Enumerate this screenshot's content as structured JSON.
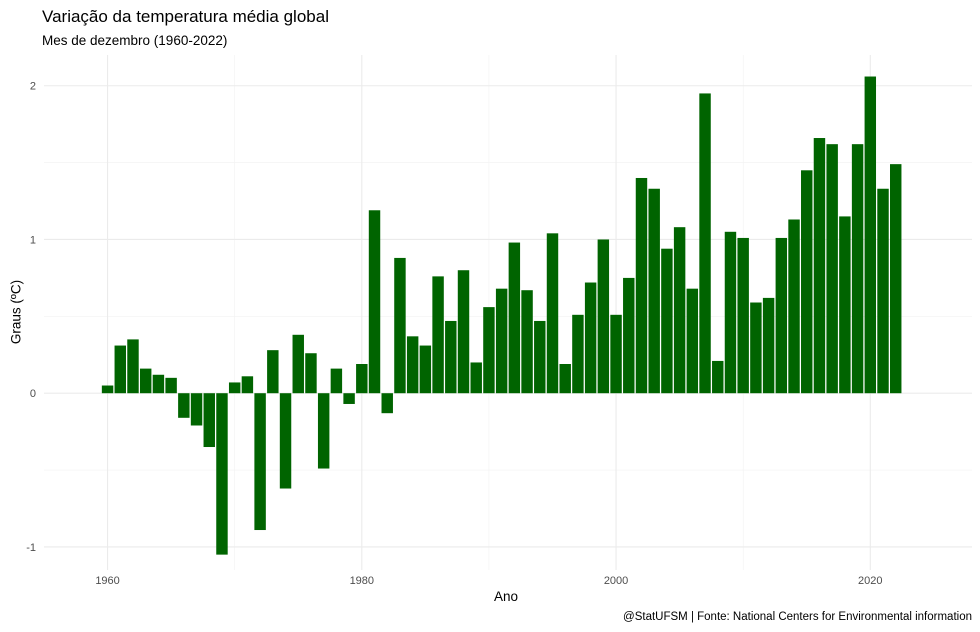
{
  "chart_data": {
    "type": "bar",
    "title": "Variação da temperatura média global",
    "subtitle": "Mes de dezembro (1960-2022)",
    "xlabel": "Ano",
    "ylabel": "Graus (ºC)",
    "caption": "@StatUFSM  |  Fonte: National Centers for Environmental information",
    "bar_color": "#006400",
    "grid": true,
    "xlim": [
      1955,
      2028
    ],
    "ylim": [
      -1.15,
      2.2
    ],
    "x_ticks": [
      1960,
      1980,
      2000,
      2020
    ],
    "x_tick_labels": [
      "1960",
      "1980",
      "2000",
      "2020"
    ],
    "y_ticks": [
      -1,
      0,
      1,
      2
    ],
    "y_tick_labels": [
      "-1",
      "0",
      "1",
      "2"
    ],
    "x": [
      1960,
      1961,
      1962,
      1963,
      1964,
      1965,
      1966,
      1967,
      1968,
      1969,
      1970,
      1971,
      1972,
      1973,
      1974,
      1975,
      1976,
      1977,
      1978,
      1979,
      1980,
      1981,
      1982,
      1983,
      1984,
      1985,
      1986,
      1987,
      1988,
      1989,
      1990,
      1991,
      1992,
      1993,
      1994,
      1995,
      1996,
      1997,
      1998,
      1999,
      2000,
      2001,
      2002,
      2003,
      2004,
      2005,
      2006,
      2007,
      2008,
      2009,
      2010,
      2011,
      2012,
      2013,
      2014,
      2015,
      2016,
      2017,
      2018,
      2019,
      2020,
      2021,
      2022
    ],
    "values": [
      0.05,
      0.31,
      0.35,
      0.16,
      0.12,
      0.1,
      -0.16,
      -0.21,
      -0.35,
      -1.05,
      0.07,
      0.11,
      -0.89,
      0.28,
      -0.62,
      0.38,
      0.26,
      -0.49,
      0.16,
      -0.07,
      0.19,
      1.19,
      -0.13,
      0.88,
      0.37,
      0.31,
      0.76,
      0.47,
      0.8,
      0.2,
      0.56,
      0.68,
      0.98,
      0.67,
      0.47,
      1.04,
      0.19,
      0.51,
      0.72,
      1.0,
      0.51,
      0.75,
      1.4,
      1.33,
      0.94,
      1.08,
      0.68,
      1.95,
      0.21,
      1.05,
      1.01,
      0.59,
      0.62,
      1.01,
      1.13,
      1.45,
      1.66,
      1.62,
      1.15,
      1.62,
      2.06,
      1.33,
      1.49
    ]
  }
}
